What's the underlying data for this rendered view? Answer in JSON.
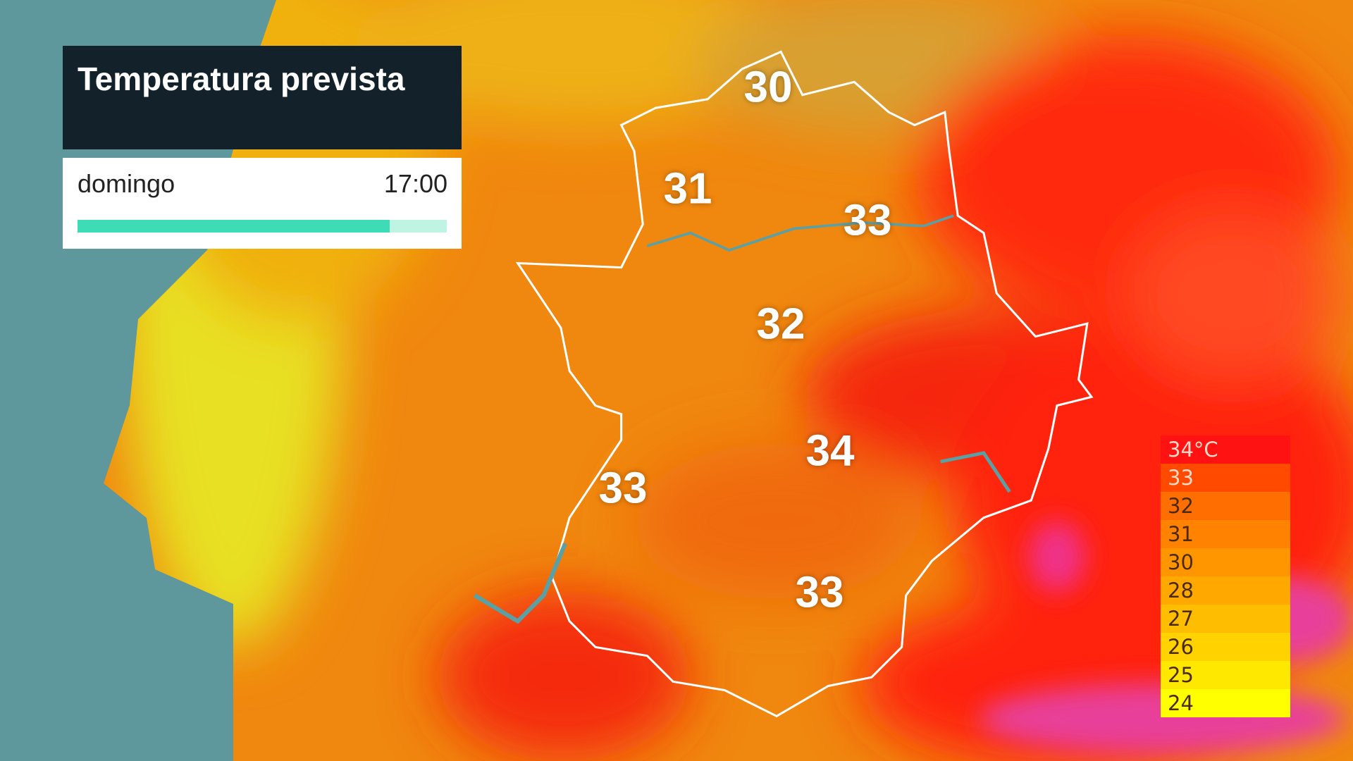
{
  "header": {
    "title": "Temperatura prevista",
    "day": "domingo",
    "time": "17:00"
  },
  "map_labels": [
    30,
    31,
    33,
    32,
    34,
    33,
    33
  ],
  "legend": [
    {
      "label": "34°C",
      "color": "#ff1212"
    },
    {
      "label": "33",
      "color": "#ff4a00"
    },
    {
      "label": "32",
      "color": "#ff6e00"
    },
    {
      "label": "31",
      "color": "#ff8300"
    },
    {
      "label": "30",
      "color": "#ff9600"
    },
    {
      "label": "28",
      "color": "#ffa900"
    },
    {
      "label": "27",
      "color": "#ffbd00"
    },
    {
      "label": "26",
      "color": "#ffd200"
    },
    {
      "label": "25",
      "color": "#ffe800"
    },
    {
      "label": "24",
      "color": "#ffff00"
    }
  ]
}
